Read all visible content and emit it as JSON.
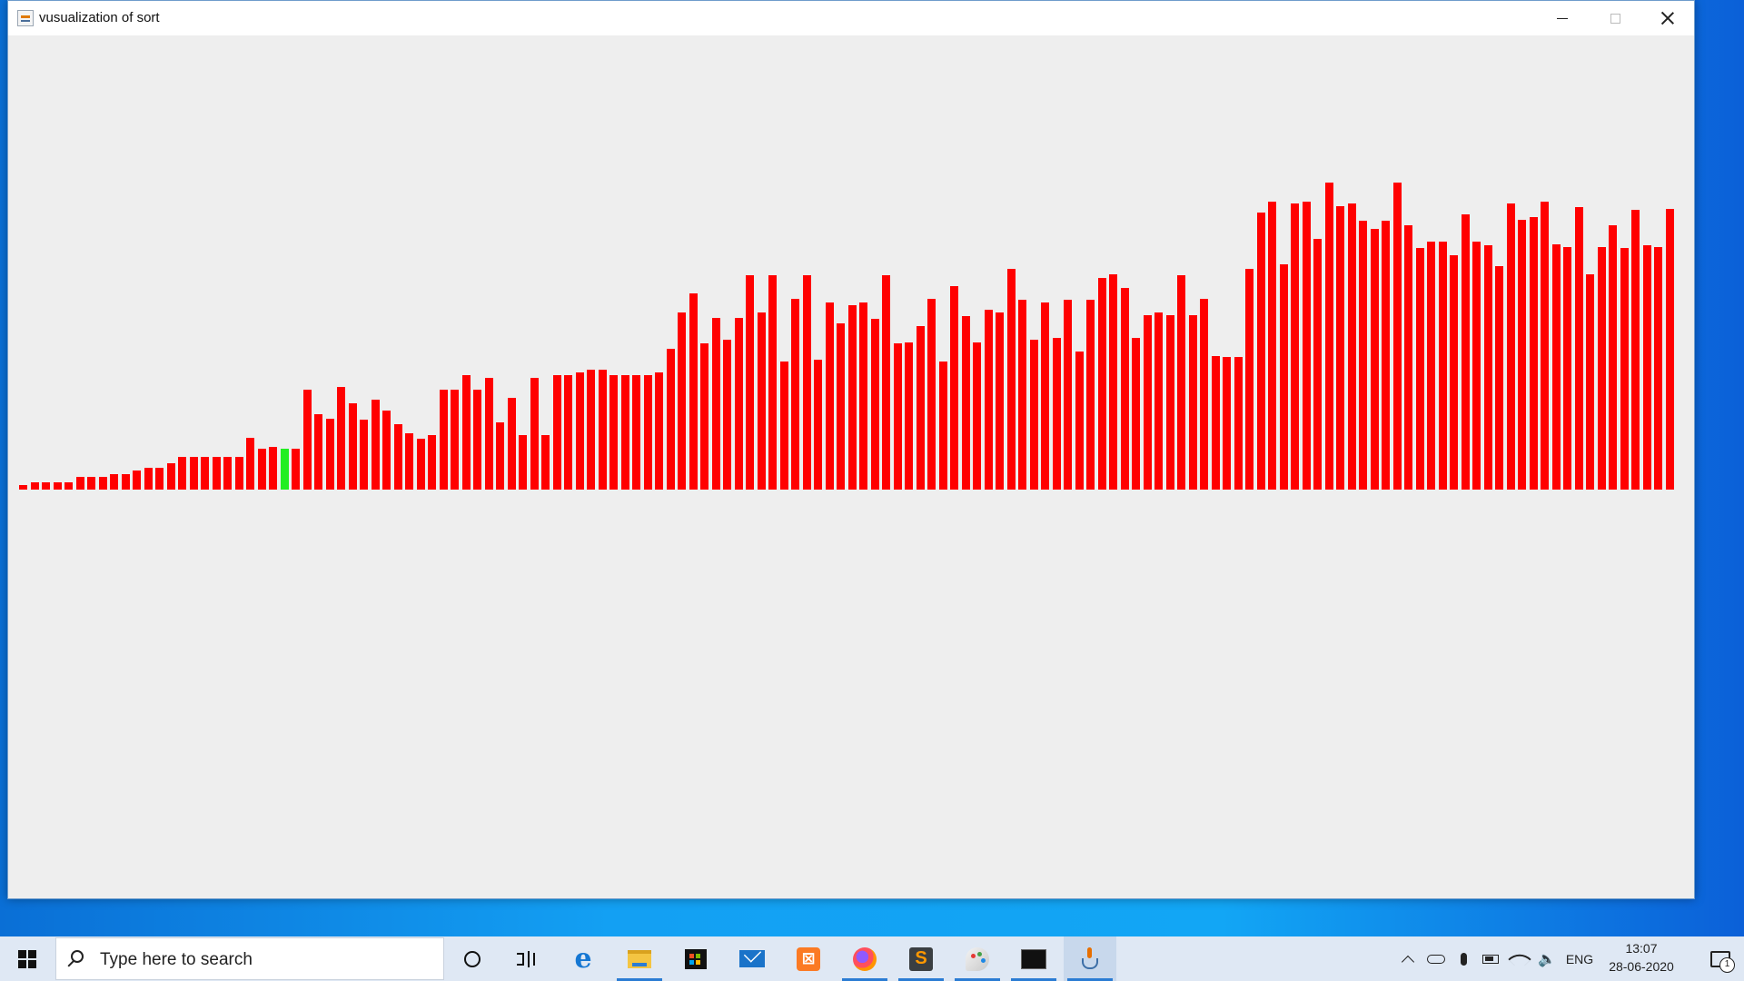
{
  "window": {
    "title": "vusualization of sort"
  },
  "visualization": {
    "bar_color": "#ff0000",
    "highlight_color": "#22ee22",
    "highlight_index": 23,
    "values": [
      3,
      5,
      5,
      5,
      5,
      9,
      9,
      9,
      11,
      11,
      14,
      16,
      16,
      19,
      24,
      24,
      24,
      24,
      24,
      24,
      38,
      30,
      31,
      30,
      30,
      73,
      55,
      52,
      75,
      63,
      51,
      66,
      58,
      48,
      41,
      37,
      40,
      73,
      73,
      84,
      73,
      82,
      49,
      67,
      40,
      82,
      40,
      84,
      84,
      86,
      88,
      88,
      84,
      84,
      84,
      84,
      86,
      103,
      130,
      144,
      107,
      126,
      110,
      126,
      157,
      130,
      157,
      94,
      140,
      157,
      95,
      137,
      122,
      135,
      137,
      125,
      157,
      107,
      108,
      120,
      140,
      94,
      149,
      127,
      108,
      132,
      130,
      162,
      139,
      110,
      137,
      111,
      139,
      101,
      139,
      155,
      158,
      148,
      111,
      128,
      130,
      128,
      157,
      128,
      140,
      98,
      97,
      97,
      162,
      203,
      211,
      165,
      210,
      211,
      184,
      225,
      208,
      210,
      197,
      191,
      197,
      225,
      194,
      177,
      182,
      182,
      172,
      202,
      182,
      179,
      164,
      210,
      198,
      200,
      211,
      180,
      178,
      207,
      158,
      178,
      194,
      177,
      205,
      179,
      178,
      206
    ]
  },
  "taskbar": {
    "search_placeholder": "Type here to search",
    "apps": [
      "cortana",
      "task-view",
      "edge",
      "file-explorer",
      "store",
      "mail",
      "xampp",
      "firefox",
      "sublime-text",
      "paint-3d",
      "command-prompt",
      "java"
    ],
    "language": "ENG",
    "time": "13:07",
    "date": "28-06-2020",
    "notification_count": "1"
  }
}
